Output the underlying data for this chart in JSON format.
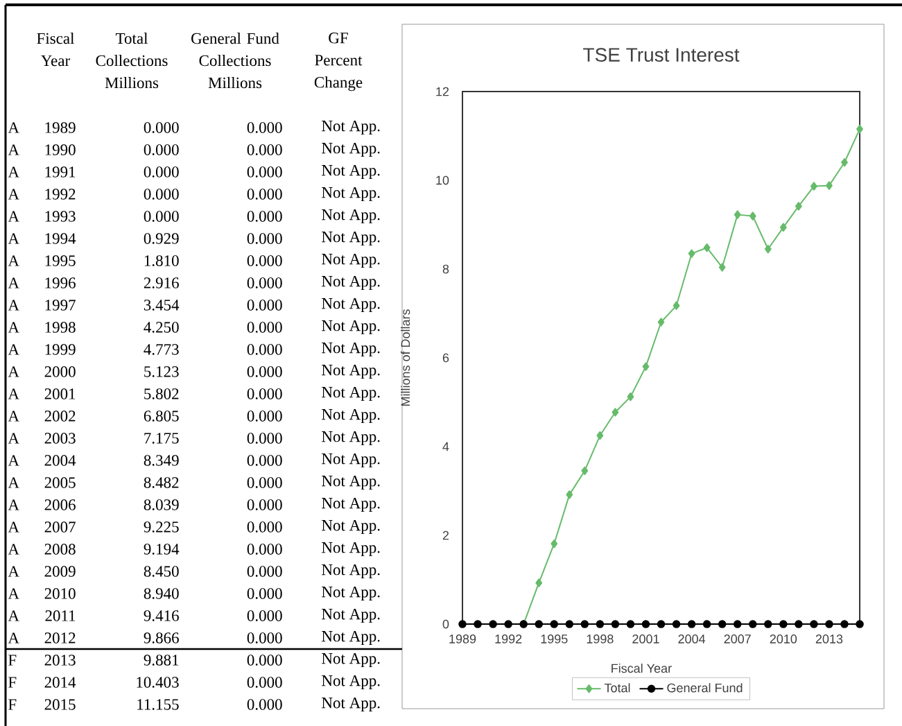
{
  "chart_data": {
    "type": "line",
    "title": "TSE Trust Interest",
    "xlabel": "Fiscal Year",
    "ylabel": "Millions of Dollars",
    "x": [
      1989,
      1990,
      1991,
      1992,
      1993,
      1994,
      1995,
      1996,
      1997,
      1998,
      1999,
      2000,
      2001,
      2002,
      2003,
      2004,
      2005,
      2006,
      2007,
      2008,
      2009,
      2010,
      2011,
      2012,
      2013,
      2014,
      2015
    ],
    "series": [
      {
        "name": "Total",
        "color": "#66bb6a",
        "marker": "diamond",
        "values": [
          null,
          null,
          null,
          null,
          0,
          0.929,
          1.81,
          2.916,
          3.454,
          4.25,
          4.773,
          5.123,
          5.802,
          6.805,
          7.175,
          8.349,
          8.482,
          8.039,
          9.225,
          9.194,
          8.45,
          8.94,
          9.416,
          9.866,
          9.881,
          10.403,
          11.155
        ]
      },
      {
        "name": "General Fund",
        "color": "#000000",
        "marker": "circle",
        "values": [
          0,
          0,
          0,
          0,
          0,
          0,
          0,
          0,
          0,
          0,
          0,
          0,
          0,
          0,
          0,
          0,
          0,
          0,
          0,
          0,
          0,
          0,
          0,
          0,
          0,
          0,
          0
        ]
      }
    ],
    "xlim": [
      1989,
      2015
    ],
    "xticks": [
      1989,
      1992,
      1995,
      1998,
      2001,
      2004,
      2007,
      2010,
      2013
    ],
    "ylim": [
      0,
      12
    ],
    "yticks": [
      0,
      2,
      4,
      6,
      8,
      10,
      12
    ],
    "legend": "bottom",
    "line_style": "solid",
    "grid": false,
    "annotations": [
      "Fiscal Year",
      "Total Collections Millions",
      "General Fund Collections Millions",
      "GF Percent Change",
      "A",
      "1989",
      "0.000",
      "0.000",
      "Not App.",
      "A",
      "1990",
      "0.000",
      "0.000",
      "Not App.",
      "A",
      "1991",
      "0.000",
      "0.000",
      "Not App.",
      "A",
      "1992",
      "0.000",
      "0.000",
      "Not App.",
      "A",
      "1993",
      "0.000",
      "0.000",
      "Not App.",
      "A",
      "1994",
      "0.929",
      "0.000",
      "Not App.",
      "A",
      "1995",
      "1.810",
      "0.000",
      "Not App.",
      "A",
      "1996",
      "2.916",
      "0.000",
      "Not App.",
      "A",
      "1997",
      "3.454",
      "0.000",
      "Not App.",
      "A",
      "1998",
      "4.250",
      "0.000",
      "Not App.",
      "A",
      "1999",
      "4.773",
      "0.000",
      "Not App.",
      "A",
      "2000",
      "5.123",
      "0.000",
      "Not App.",
      "A",
      "2001",
      "5.802",
      "0.000",
      "Not App.",
      "A",
      "2002",
      "6.805",
      "0.000",
      "Not App.",
      "A",
      "2003",
      "7.175",
      "0.000",
      "Not App.",
      "A",
      "2004",
      "8.349",
      "0.000",
      "Not App.",
      "A",
      "2005",
      "8.482",
      "0.000",
      "Not App.",
      "A",
      "2006",
      "8.039",
      "0.000",
      "Not App.",
      "A",
      "2007",
      "9.225",
      "0.000",
      "Not App.",
      "A",
      "2008",
      "9.194",
      "0.000",
      "Not App.",
      "A",
      "2009",
      "8.450",
      "0.000",
      "Not App.",
      "A",
      "2010",
      "8.940",
      "0.000",
      "Not App.",
      "A",
      "2011",
      "9.416",
      "0.000",
      "Not App.",
      "A",
      "2012",
      "9.866",
      "0.000",
      "Not App.",
      "F",
      "2013",
      "9.881",
      "0.000",
      "Not App.",
      "F",
      "2014",
      "10.403",
      "0.000",
      "Not App.",
      "F",
      "2015",
      "11.155",
      "0.000",
      "Not App."
    ]
  }
}
